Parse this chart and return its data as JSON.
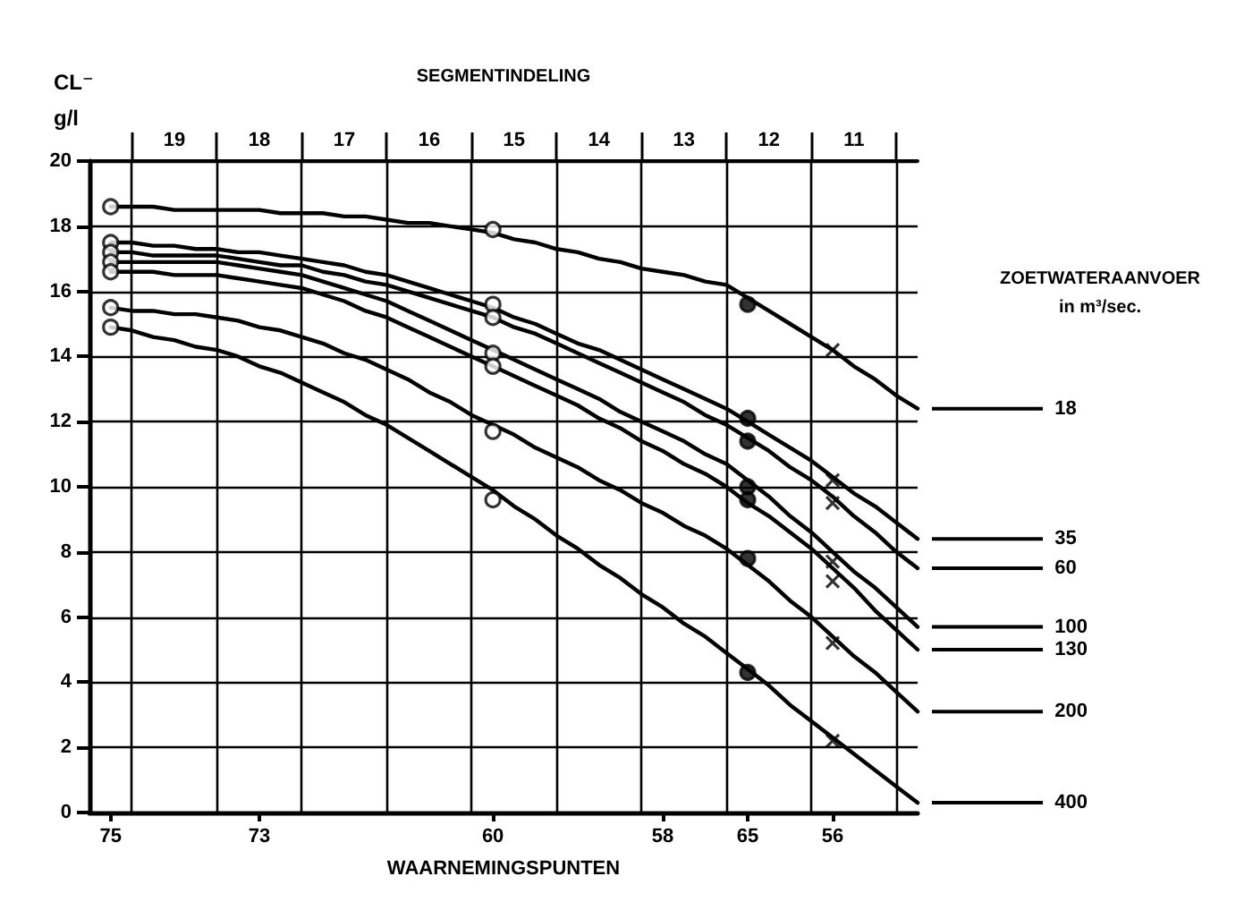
{
  "chart_data": {
    "type": "line",
    "ylabel": "CL⁻\ng/l",
    "xlabel": "WAARNEMINGSPUNTEN",
    "x2label": "SEGMENTINDELING",
    "legend_title": "ZOETWATERAANVOER\nin m³/sec.",
    "categories": [
      null,
      "75",
      null,
      null,
      null,
      null,
      null,
      null,
      "73",
      null,
      null,
      null,
      null,
      null,
      null,
      null,
      null,
      null,
      null,
      "60",
      null,
      null,
      null,
      null,
      null,
      null,
      null,
      "58",
      null,
      null,
      null,
      "65",
      null,
      null,
      null,
      "56",
      null,
      null,
      null,
      null
    ],
    "x2lim": [
      20,
      10.25
    ],
    "x2ticks": [
      {
        "value": 19.5,
        "label": null
      },
      19,
      {
        "value": 18.5,
        "label": null
      },
      18,
      {
        "value": 17.5,
        "label": null
      },
      17,
      {
        "value": 16.5,
        "label": null
      },
      16,
      {
        "value": 15.5,
        "label": null
      },
      15,
      {
        "value": 14.5,
        "label": null
      },
      14,
      {
        "value": 13.5,
        "label": null
      },
      13,
      {
        "value": 12.5,
        "label": null
      },
      12,
      {
        "value": 11.5,
        "label": null
      },
      11,
      {
        "value": 10.5,
        "label": null
      }
    ],
    "ylim": [
      0,
      20
    ],
    "yticks": [
      0,
      2,
      4,
      6,
      8,
      10,
      12,
      14,
      16,
      18,
      20
    ],
    "grid": true,
    "legend": false,
    "marker": "none",
    "series": [
      {
        "name": "18",
        "color": "#000000",
        "values": [
          null,
          18.6,
          18.6,
          18.6,
          18.5,
          18.5,
          18.5,
          18.5,
          18.5,
          18.4,
          18.4,
          18.4,
          18.3,
          18.3,
          18.2,
          18.1,
          18.1,
          18.0,
          17.9,
          17.8,
          17.6,
          17.5,
          17.3,
          17.2,
          17.0,
          16.9,
          16.7,
          16.6,
          16.5,
          16.3,
          16.2,
          15.8,
          15.4,
          15.0,
          14.6,
          14.2,
          13.7,
          13.3,
          12.8,
          12.4
        ]
      },
      {
        "name": "35",
        "color": "#000000",
        "values": [
          null,
          17.5,
          17.5,
          17.4,
          17.4,
          17.3,
          17.3,
          17.2,
          17.2,
          17.1,
          17.0,
          16.9,
          16.8,
          16.6,
          16.5,
          16.3,
          16.1,
          15.9,
          15.7,
          15.5,
          15.2,
          15.0,
          14.7,
          14.4,
          14.2,
          13.9,
          13.6,
          13.3,
          13.0,
          12.7,
          12.4,
          12.0,
          11.6,
          11.2,
          10.8,
          10.3,
          9.8,
          9.4,
          8.9,
          8.4
        ]
      },
      {
        "name": "60",
        "color": "#000000",
        "values": [
          null,
          17.2,
          17.2,
          17.1,
          17.1,
          17.1,
          17.1,
          17.0,
          16.9,
          16.8,
          16.8,
          16.6,
          16.5,
          16.3,
          16.2,
          16.0,
          15.8,
          15.6,
          15.4,
          15.2,
          14.9,
          14.7,
          14.4,
          14.1,
          13.8,
          13.5,
          13.2,
          12.9,
          12.6,
          12.2,
          11.9,
          11.5,
          11.1,
          10.6,
          10.2,
          9.7,
          9.1,
          8.6,
          8.0,
          7.5
        ]
      },
      {
        "name": "100",
        "color": "#000000",
        "values": [
          null,
          16.9,
          16.9,
          16.9,
          16.9,
          16.9,
          16.9,
          16.8,
          16.7,
          16.6,
          16.5,
          16.3,
          16.1,
          15.9,
          15.7,
          15.4,
          15.1,
          14.8,
          14.5,
          14.2,
          13.9,
          13.6,
          13.3,
          13.0,
          12.7,
          12.3,
          12.0,
          11.7,
          11.4,
          11.0,
          10.7,
          10.2,
          9.7,
          9.1,
          8.6,
          8.0,
          7.4,
          6.9,
          6.3,
          5.7
        ]
      },
      {
        "name": "130",
        "color": "#000000",
        "values": [
          null,
          16.6,
          16.6,
          16.6,
          16.5,
          16.5,
          16.5,
          16.4,
          16.3,
          16.2,
          16.1,
          15.9,
          15.7,
          15.4,
          15.2,
          14.9,
          14.6,
          14.3,
          14.0,
          13.7,
          13.4,
          13.1,
          12.8,
          12.5,
          12.1,
          11.8,
          11.4,
          11.1,
          10.7,
          10.4,
          10.0,
          9.5,
          9.1,
          8.6,
          8.1,
          7.5,
          6.9,
          6.2,
          5.6,
          5.0
        ]
      },
      {
        "name": "200",
        "color": "#000000",
        "values": [
          null,
          15.5,
          15.4,
          15.4,
          15.3,
          15.3,
          15.2,
          15.1,
          14.9,
          14.8,
          14.6,
          14.4,
          14.1,
          13.9,
          13.6,
          13.3,
          12.9,
          12.6,
          12.2,
          11.9,
          11.6,
          11.2,
          10.9,
          10.6,
          10.2,
          9.9,
          9.5,
          9.2,
          8.8,
          8.5,
          8.1,
          7.6,
          7.1,
          6.5,
          6.0,
          5.4,
          4.8,
          4.3,
          3.7,
          3.1
        ]
      },
      {
        "name": "400",
        "color": "#000000",
        "values": [
          null,
          14.9,
          14.8,
          14.6,
          14.5,
          14.3,
          14.2,
          14.0,
          13.7,
          13.5,
          13.2,
          12.9,
          12.6,
          12.2,
          11.9,
          11.5,
          11.1,
          10.7,
          10.3,
          9.9,
          9.4,
          9.0,
          8.5,
          8.1,
          7.6,
          7.2,
          6.7,
          6.3,
          5.8,
          5.4,
          4.9,
          4.4,
          3.9,
          3.3,
          2.8,
          2.3,
          1.8,
          1.3,
          0.8,
          0.3
        ]
      },
      {
        "type": "scatter",
        "marker": "circle",
        "color": "#ffffff",
        "x": [
          "75",
          "75",
          "75",
          "75",
          "75",
          "75",
          "75",
          "60",
          "60",
          "60",
          "60",
          "60",
          "60",
          "60"
        ],
        "values": [
          18.6,
          17.5,
          17.2,
          16.9,
          16.6,
          15.5,
          14.9,
          17.9,
          15.6,
          15.2,
          14.1,
          13.7,
          11.7,
          9.6
        ]
      },
      {
        "type": "scatter",
        "marker": "circle",
        "color": "#000000",
        "x": [
          "65",
          "65",
          "65",
          "65",
          "65",
          "65",
          "65"
        ],
        "values": [
          15.6,
          12.1,
          11.4,
          10.0,
          9.6,
          7.8,
          4.3
        ]
      },
      {
        "type": "scatter",
        "marker": "cross",
        "color": "#000000",
        "x": [
          "56",
          "56",
          "56",
          "56",
          "56",
          "56",
          "56"
        ],
        "values": [
          14.2,
          10.2,
          9.5,
          7.7,
          7.1,
          5.2,
          2.2
        ]
      }
    ]
  }
}
